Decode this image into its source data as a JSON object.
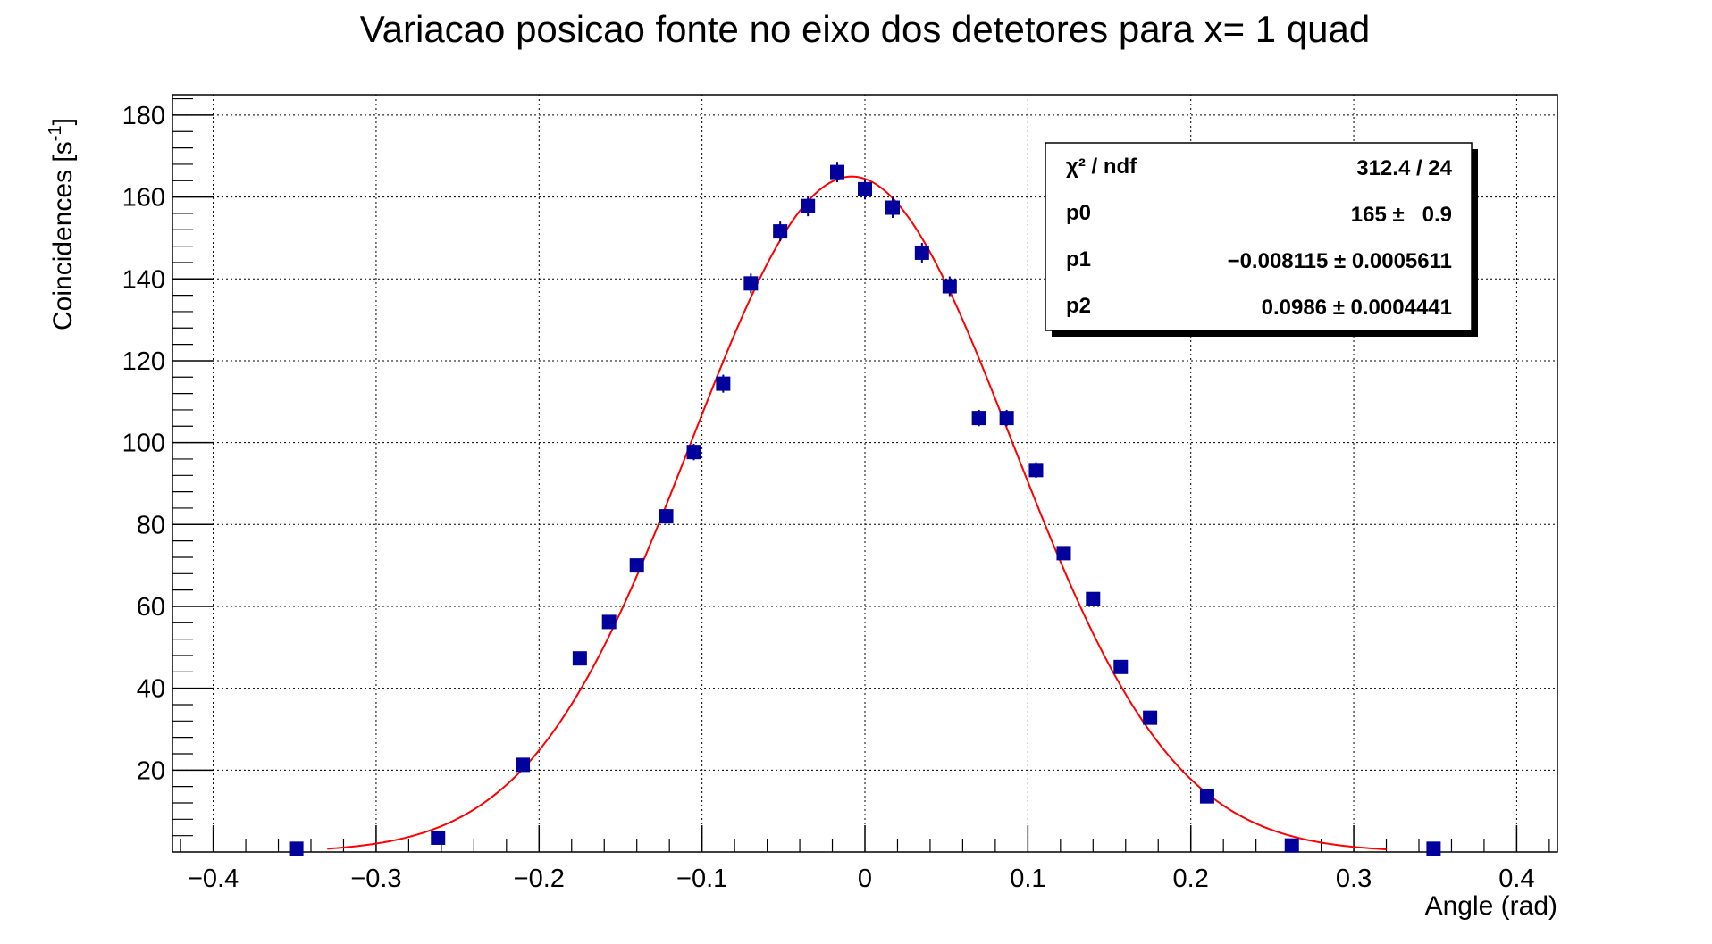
{
  "chart_data": {
    "type": "scatter",
    "title": "Variacao posicao fonte no eixo dos detetores para x= 1 quad",
    "xlabel": "Angle (rad)",
    "ylabel": "Coincidences [s",
    "ylabel_sup": "-1",
    "ylabel_close": "]",
    "xlim": [
      -0.425,
      0.425
    ],
    "ylim": [
      0,
      185
    ],
    "x_ticks": [
      -0.4,
      -0.3,
      -0.2,
      -0.1,
      0,
      0.1,
      0.2,
      0.3,
      0.4
    ],
    "x_tick_labels": [
      "−0.4",
      "−0.3",
      "−0.2",
      "−0.1",
      "0",
      "0.1",
      "0.2",
      "0.3",
      "0.4"
    ],
    "y_ticks": [
      20,
      40,
      60,
      80,
      100,
      120,
      140,
      160,
      180
    ],
    "y_tick_labels": [
      "20",
      "40",
      "60",
      "80",
      "100",
      "120",
      "140",
      "160",
      "180"
    ],
    "grid": true,
    "series": [
      {
        "marker": "square",
        "color": "#00009c",
        "x": [
          -0.349,
          -0.262,
          -0.21,
          -0.175,
          -0.157,
          -0.14,
          -0.122,
          -0.105,
          -0.087,
          -0.07,
          -0.052,
          -0.035,
          -0.017,
          0.0,
          0.017,
          0.035,
          0.052,
          0.07,
          0.087,
          0.105,
          0.122,
          0.14,
          0.157,
          0.175,
          0.21,
          0.262,
          0.349
        ],
        "y": [
          0.8,
          3.5,
          21.3,
          47.3,
          56.2,
          70.0,
          82.0,
          97.7,
          114.4,
          138.9,
          151.6,
          157.8,
          166.1,
          161.9,
          157.4,
          146.4,
          138.2,
          106.0,
          106.0,
          93.3,
          73.0,
          61.8,
          45.2,
          32.8,
          13.6,
          1.6,
          0.8
        ],
        "yerr": [
          0.4,
          0.8,
          1.7,
          1.5,
          1.5,
          1.6,
          1.8,
          2.0,
          2.2,
          2.4,
          2.4,
          2.5,
          2.5,
          2.5,
          2.5,
          2.4,
          2.4,
          2.0,
          2.0,
          1.9,
          1.6,
          1.5,
          1.3,
          1.1,
          0.8,
          0.4,
          0.3
        ]
      },
      {
        "type": "fit-line",
        "color": "#ff0000",
        "function": "gaussian",
        "params": {
          "p0": 165,
          "p1": -0.008115,
          "p2": 0.0986
        },
        "x_range": [
          -0.33,
          0.32
        ]
      }
    ],
    "stats_box": {
      "rows": [
        {
          "label": "χ² / ndf",
          "value": "312.4 / 24"
        },
        {
          "label": "p0",
          "value": "165 ±   0.9"
        },
        {
          "label": "p1",
          "value": "−0.008115 ± 0.0005611"
        },
        {
          "label": "p2",
          "value": "0.0986 ± 0.0004441"
        }
      ]
    }
  }
}
